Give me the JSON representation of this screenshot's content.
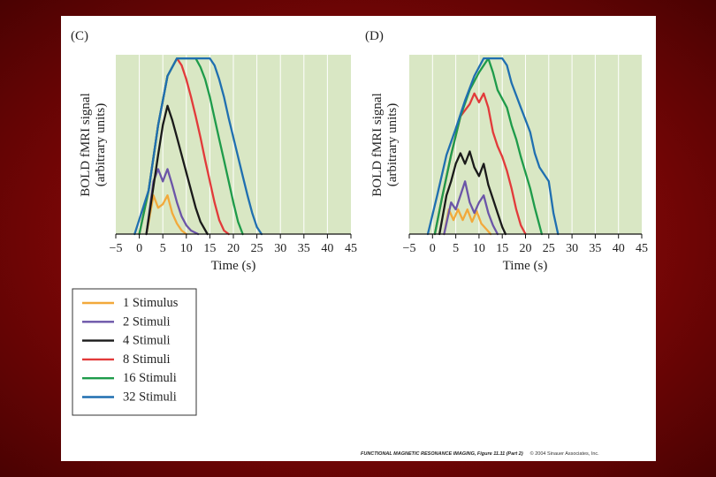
{
  "chart_data": [
    {
      "type": "line",
      "panel_label": "(C)",
      "xlabel": "Time (s)",
      "ylabel_line1": "BOLD fMRI signal",
      "ylabel_line2": "(arbitrary units)",
      "xlim": [
        -5,
        45
      ],
      "ylim": [
        0,
        100
      ],
      "xticks": [
        "−5",
        "0",
        "5",
        "10",
        "15",
        "20",
        "25",
        "30",
        "35",
        "40",
        "45"
      ],
      "grid": true,
      "series": [
        {
          "name": "1 Stimulus",
          "x": [
            1.5,
            3,
            4,
            5,
            6,
            7,
            8,
            9,
            10
          ],
          "y": [
            0,
            22,
            15,
            17,
            22,
            12,
            6,
            2,
            0
          ]
        },
        {
          "name": "2 Stimuli",
          "x": [
            1.5,
            3,
            4,
            5,
            6,
            7,
            8,
            9,
            10,
            11,
            12.5
          ],
          "y": [
            0,
            30,
            37,
            30,
            37,
            28,
            18,
            10,
            5,
            2,
            0
          ]
        },
        {
          "name": "4 Stimuli",
          "x": [
            1.5,
            4,
            5,
            6,
            7,
            8,
            9,
            10,
            11,
            12,
            13,
            14.5
          ],
          "y": [
            0,
            45,
            62,
            73,
            65,
            55,
            45,
            35,
            25,
            15,
            7,
            0
          ]
        },
        {
          "name": "8 Stimuli",
          "x": [
            0,
            2,
            4,
            6,
            8,
            9,
            10,
            11,
            12,
            13,
            14,
            15,
            16,
            17,
            18,
            19
          ],
          "y": [
            0,
            25,
            62,
            90,
            100,
            96,
            88,
            78,
            67,
            55,
            42,
            30,
            18,
            8,
            2,
            0
          ]
        },
        {
          "name": "16 Stimuli",
          "x": [
            0,
            2,
            4,
            6,
            8,
            9,
            12,
            13,
            14,
            15,
            16,
            17,
            18,
            19,
            20,
            21,
            22
          ],
          "y": [
            0,
            25,
            62,
            90,
            100,
            100,
            100,
            95,
            88,
            78,
            66,
            54,
            42,
            30,
            18,
            7,
            0
          ]
        },
        {
          "name": "32 Stimuli",
          "x": [
            -1,
            2,
            4,
            6,
            8,
            9,
            15,
            16,
            17,
            18,
            19,
            20,
            21,
            22,
            23,
            24,
            25,
            26
          ],
          "y": [
            0,
            25,
            62,
            90,
            100,
            100,
            100,
            96,
            88,
            78,
            66,
            55,
            44,
            33,
            22,
            12,
            4,
            0
          ]
        }
      ]
    },
    {
      "type": "line",
      "panel_label": "(D)",
      "xlabel": "Time (s)",
      "ylabel_line1": "BOLD fMRI signal",
      "ylabel_line2": "(arbitrary units)",
      "xlim": [
        -5,
        45
      ],
      "ylim": [
        0,
        100
      ],
      "xticks": [
        "−5",
        "0",
        "5",
        "10",
        "15",
        "20",
        "25",
        "30",
        "35",
        "40",
        "45"
      ],
      "grid": true,
      "series": [
        {
          "name": "1 Stimulus",
          "x": [
            2.5,
            3.5,
            4.5,
            5.5,
            6.5,
            7.5,
            8.5,
            9.5,
            10.5,
            11.5,
            12.5
          ],
          "y": [
            0,
            14,
            8,
            14,
            8,
            14,
            7,
            13,
            6,
            3,
            0
          ]
        },
        {
          "name": "2 Stimuli",
          "x": [
            2.5,
            4,
            5,
            6,
            7,
            8,
            9,
            10,
            11,
            12,
            13,
            14
          ],
          "y": [
            0,
            18,
            14,
            22,
            30,
            18,
            12,
            18,
            22,
            12,
            5,
            0
          ]
        },
        {
          "name": "4 Stimuli",
          "x": [
            1.5,
            3,
            4,
            5,
            6,
            7,
            8,
            9,
            10,
            11,
            12,
            13,
            14,
            15,
            15.7
          ],
          "y": [
            0,
            22,
            30,
            40,
            46,
            40,
            47,
            38,
            33,
            40,
            28,
            20,
            12,
            4,
            0
          ]
        },
        {
          "name": "8 Stimuli",
          "x": [
            0.5,
            2,
            4,
            6,
            8,
            9,
            10,
            11,
            12,
            13,
            14,
            15,
            16,
            17,
            18,
            19,
            20
          ],
          "y": [
            0,
            20,
            45,
            67,
            74,
            80,
            75,
            80,
            72,
            58,
            50,
            44,
            36,
            26,
            14,
            5,
            0
          ]
        },
        {
          "name": "16 Stimuli",
          "x": [
            0.5,
            2,
            4,
            6,
            8,
            10,
            11,
            12,
            13,
            14,
            16,
            17,
            18,
            19,
            20,
            21,
            22,
            23.5
          ],
          "y": [
            0,
            20,
            45,
            67,
            82,
            92,
            96,
            100,
            92,
            82,
            72,
            62,
            54,
            44,
            35,
            26,
            15,
            0
          ]
        },
        {
          "name": "32 Stimuli",
          "x": [
            -1,
            1,
            3,
            5,
            7,
            9,
            11,
            12,
            13,
            15,
            16,
            17,
            19,
            21,
            22,
            23,
            25,
            26,
            27
          ],
          "y": [
            0,
            22,
            45,
            60,
            76,
            90,
            100,
            100,
            100,
            100,
            96,
            86,
            72,
            58,
            46,
            38,
            30,
            12,
            0
          ]
        }
      ]
    }
  ],
  "legend": {
    "items": [
      {
        "label": "1 Stimulus",
        "color": "#f2a93b"
      },
      {
        "label": "2 Stimuli",
        "color": "#6b55a8"
      },
      {
        "label": "4 Stimuli",
        "color": "#1a1a1a"
      },
      {
        "label": "8 Stimuli",
        "color": "#e23a3a"
      },
      {
        "label": "16 Stimuli",
        "color": "#1e9b4a"
      },
      {
        "label": "32 Stimuli",
        "color": "#1f6fb0"
      }
    ]
  },
  "credit": {
    "title": "FUNCTIONAL MAGNETIC RESONANCE IMAGING, Figure 11.11 (Part 2)",
    "copyright": "© 2004 Sinauer Associates, Inc."
  }
}
